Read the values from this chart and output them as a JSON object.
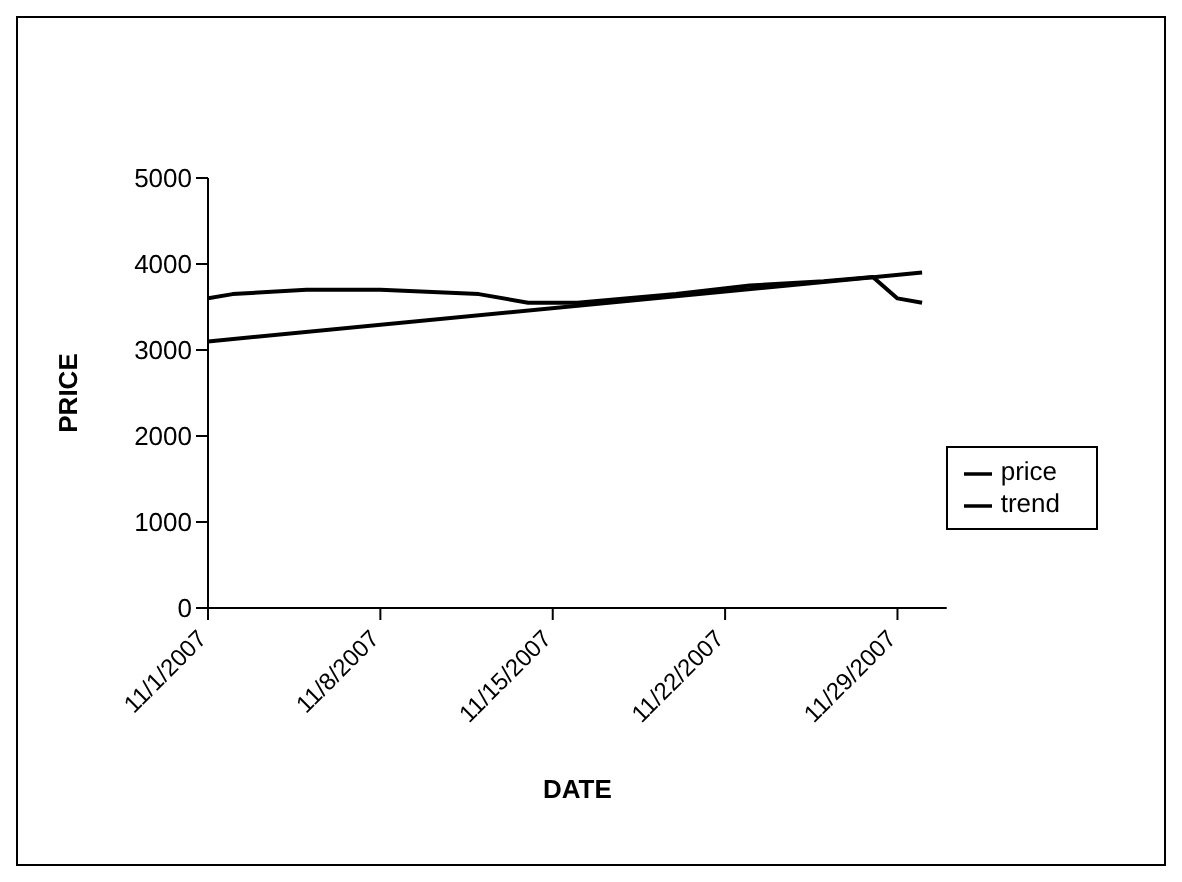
{
  "chart_data": {
    "type": "line",
    "xlabel": "DATE",
    "ylabel": "PRICE",
    "xlim": [
      "2007-11-01",
      "2007-12-01"
    ],
    "xticks": [
      {
        "value": "2007-11-01",
        "label": "11/1/2007"
      },
      {
        "value": "2007-11-08",
        "label": "11/8/2007"
      },
      {
        "value": "2007-11-15",
        "label": "11/15/2007"
      },
      {
        "value": "2007-11-22",
        "label": "11/22/2007"
      },
      {
        "value": "2007-11-29",
        "label": "11/29/2007"
      }
    ],
    "ylim": [
      0,
      5000
    ],
    "yticks": [
      0,
      1000,
      2000,
      3000,
      4000,
      5000
    ],
    "series": [
      {
        "name": "price",
        "color": "#000000",
        "x": [
          "2007-11-01",
          "2007-11-02",
          "2007-11-05",
          "2007-11-08",
          "2007-11-12",
          "2007-11-14",
          "2007-11-16",
          "2007-11-20",
          "2007-11-23",
          "2007-11-26",
          "2007-11-28",
          "2007-11-29",
          "2007-11-30"
        ],
        "values": [
          3600,
          3650,
          3700,
          3700,
          3650,
          3550,
          3550,
          3650,
          3750,
          3800,
          3850,
          3600,
          3550
        ]
      },
      {
        "name": "trend",
        "color": "#000000",
        "x": [
          "2007-11-01",
          "2007-11-30"
        ],
        "values": [
          3100,
          3900
        ]
      }
    ],
    "legend": "right",
    "marker": "none",
    "line_style": "solid"
  }
}
